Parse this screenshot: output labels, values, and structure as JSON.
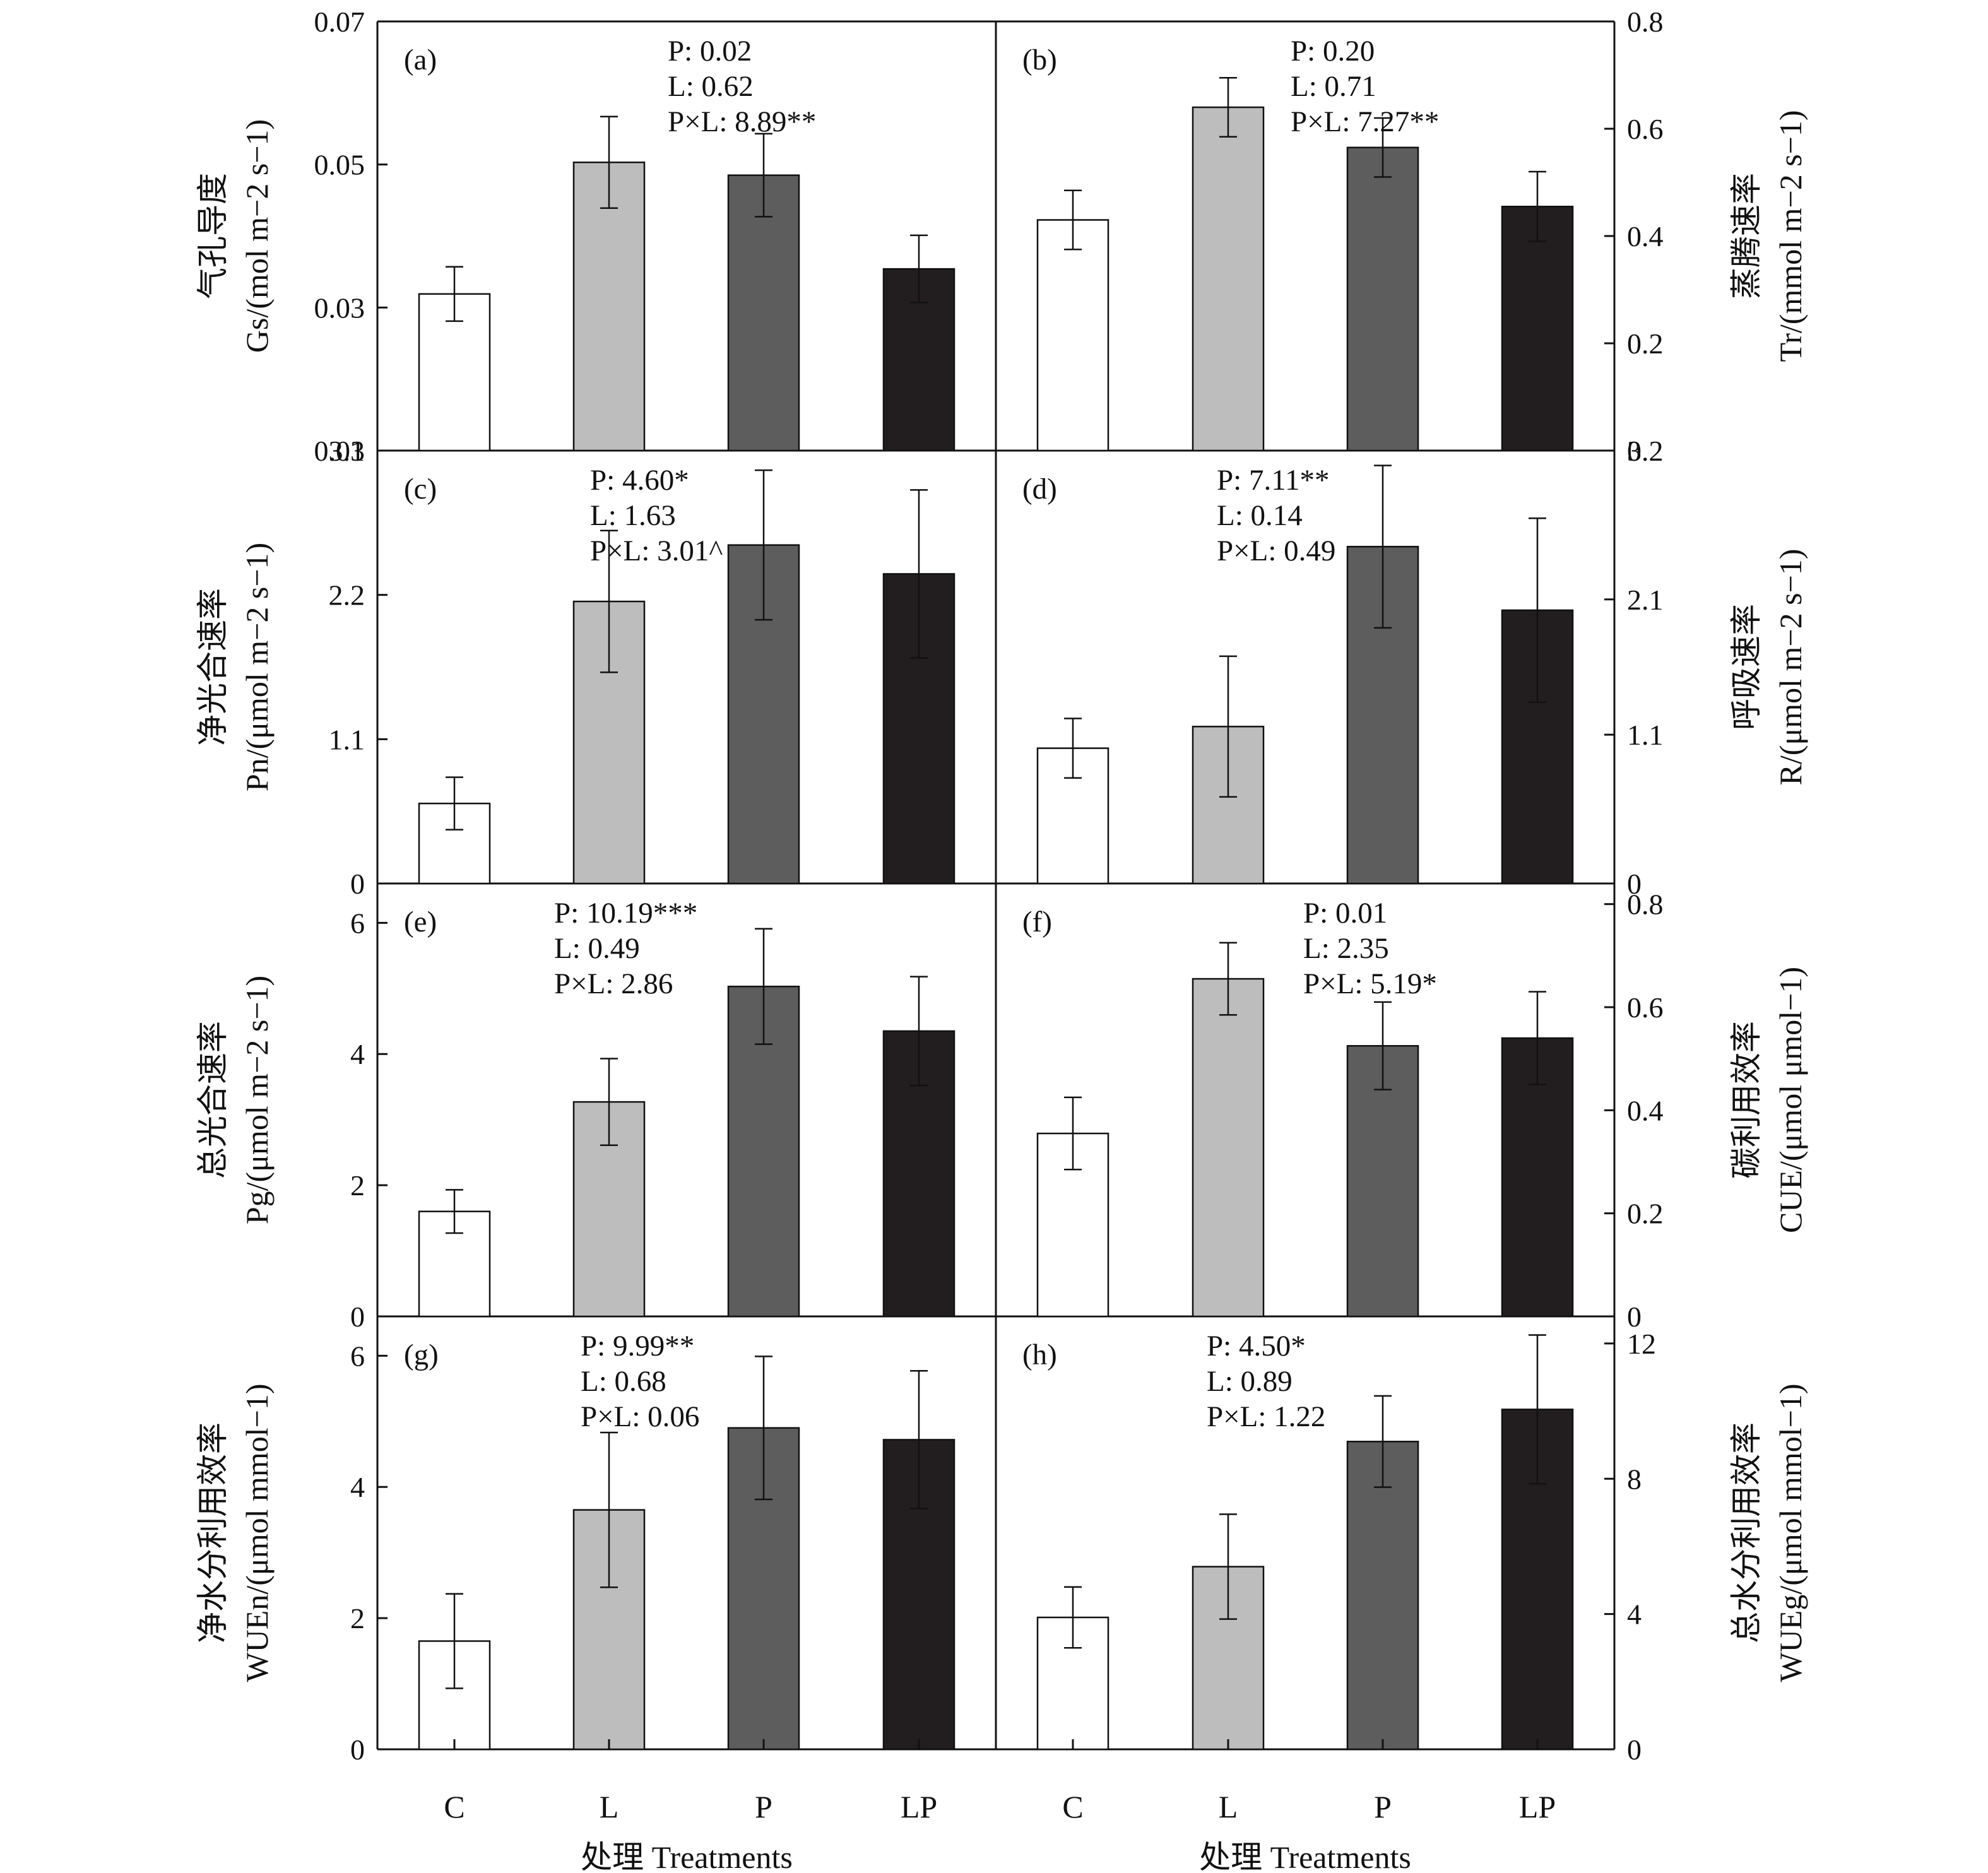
{
  "x_axis": {
    "categories": [
      "C",
      "L",
      "P",
      "LP"
    ],
    "label": "处理 Treatments"
  },
  "chart_data": [
    {
      "type": "bar",
      "panel": "(a)",
      "side": "left",
      "ylabel_line1": "气孔导度",
      "ylabel_line2": "Gs/(mol m−2 s−1)",
      "ylim": [
        0.01,
        0.07
      ],
      "yticks": [
        0.01,
        0.03,
        0.05,
        0.07
      ],
      "tick_labels": [
        "0.01",
        "0.03",
        "0.05",
        "0.07"
      ],
      "categories": [
        "C",
        "L",
        "P",
        "LP"
      ],
      "values": [
        0.0319,
        0.0503,
        0.0485,
        0.0354
      ],
      "errors": [
        0.0038,
        0.0064,
        0.0058,
        0.0047
      ],
      "annotations": [
        "P: 0.02",
        "L: 0.62",
        "P×L: 8.89**"
      ]
    },
    {
      "type": "bar",
      "panel": "(b)",
      "side": "right",
      "ylabel_line1": "蒸腾速率",
      "ylabel_line2": "Tr/(mmol m−2 s−1)",
      "ylim": [
        0,
        0.8
      ],
      "yticks": [
        0,
        0.2,
        0.4,
        0.6,
        0.8
      ],
      "tick_labels": [
        "0",
        "0.2",
        "0.4",
        "0.6",
        "0.8"
      ],
      "categories": [
        "C",
        "L",
        "P",
        "LP"
      ],
      "values": [
        0.43,
        0.64,
        0.565,
        0.455
      ],
      "errors": [
        0.055,
        0.055,
        0.055,
        0.065
      ],
      "annotations": [
        "P: 0.20",
        "L: 0.71",
        "P×L: 7.27**"
      ]
    },
    {
      "type": "bar",
      "panel": "(c)",
      "side": "left",
      "ylabel_line1": "净光合速率",
      "ylabel_line2": "Pn/(μmol m−2 s−1)",
      "ylim": [
        0,
        3.3
      ],
      "yticks": [
        0,
        1.1,
        2.2,
        3.3
      ],
      "tick_labels": [
        "0",
        "1.1",
        "2.2",
        "3.3"
      ],
      "categories": [
        "C",
        "L",
        "P",
        "LP"
      ],
      "values": [
        0.61,
        2.15,
        2.58,
        2.36
      ],
      "errors": [
        0.2,
        0.54,
        0.57,
        0.64
      ],
      "annotations": [
        "P: 4.60*",
        "L: 1.63",
        "P×L: 3.01^"
      ]
    },
    {
      "type": "bar",
      "panel": "(d)",
      "side": "right",
      "ylabel_line1": "呼吸速率",
      "ylabel_line2": "R/(μmol m−2 s−1)",
      "ylim": [
        0,
        3.2
      ],
      "yticks": [
        0,
        1.1,
        2.1,
        3.2
      ],
      "tick_labels": [
        "0",
        "1.1",
        "2.1",
        "3.2"
      ],
      "categories": [
        "C",
        "L",
        "P",
        "LP"
      ],
      "values": [
        1.0,
        1.16,
        2.49,
        2.02
      ],
      "errors": [
        0.22,
        0.52,
        0.6,
        0.68
      ],
      "annotations": [
        "P: 7.11**",
        "L: 0.14",
        "P×L: 0.49"
      ]
    },
    {
      "type": "bar",
      "panel": "(e)",
      "side": "left",
      "ylabel_line1": "总光合速率",
      "ylabel_line2": "Pg/(μmol m−2 s−1)",
      "ylim": [
        0,
        6.6
      ],
      "yticks": [
        0,
        2,
        4,
        6
      ],
      "tick_labels": [
        "0",
        "2",
        "4",
        "6"
      ],
      "categories": [
        "C",
        "L",
        "P",
        "LP"
      ],
      "values": [
        1.6,
        3.27,
        5.03,
        4.35
      ],
      "errors": [
        0.33,
        0.66,
        0.88,
        0.83
      ],
      "annotations": [
        "P: 10.19***",
        "L: 0.49",
        "P×L: 2.86"
      ]
    },
    {
      "type": "bar",
      "panel": "(f)",
      "side": "right",
      "ylabel_line1": "碳利用效率",
      "ylabel_line2": "CUE/(μmol μmol−1)",
      "ylim": [
        0,
        0.84
      ],
      "yticks": [
        0,
        0.2,
        0.4,
        0.6,
        0.8
      ],
      "tick_labels": [
        "0",
        "0.2",
        "0.4",
        "0.6",
        "0.8"
      ],
      "categories": [
        "C",
        "L",
        "P",
        "LP"
      ],
      "values": [
        0.355,
        0.655,
        0.525,
        0.54
      ],
      "errors": [
        0.07,
        0.07,
        0.085,
        0.09
      ],
      "annotations": [
        "P: 0.01",
        "L: 2.35",
        "P×L: 5.19*"
      ]
    },
    {
      "type": "bar",
      "panel": "(g)",
      "side": "left",
      "ylabel_line1": "净水分利用效率",
      "ylabel_line2": "WUEn/(μmol mmol−1)",
      "ylim": [
        0,
        6.6
      ],
      "yticks": [
        0,
        2,
        4,
        6
      ],
      "tick_labels": [
        "0",
        "2",
        "4",
        "6"
      ],
      "categories": [
        "C",
        "L",
        "P",
        "LP"
      ],
      "values": [
        1.65,
        3.65,
        4.9,
        4.72
      ],
      "errors": [
        0.72,
        1.18,
        1.09,
        1.05
      ],
      "annotations": [
        "P: 9.99**",
        "L: 0.68",
        "P×L: 0.06"
      ]
    },
    {
      "type": "bar",
      "panel": "(h)",
      "side": "right",
      "ylabel_line1": "总水分利用效率",
      "ylabel_line2": "WUEg/(μmol mmol−1)",
      "ylim": [
        0,
        12.8
      ],
      "yticks": [
        0,
        4,
        8,
        12
      ],
      "tick_labels": [
        "0",
        "4",
        "8",
        "12"
      ],
      "categories": [
        "C",
        "L",
        "P",
        "LP"
      ],
      "values": [
        3.9,
        5.4,
        9.1,
        10.05
      ],
      "errors": [
        0.9,
        1.55,
        1.35,
        2.2
      ],
      "annotations": [
        "P: 4.50*",
        "L: 0.89",
        "P×L: 1.22"
      ]
    }
  ]
}
